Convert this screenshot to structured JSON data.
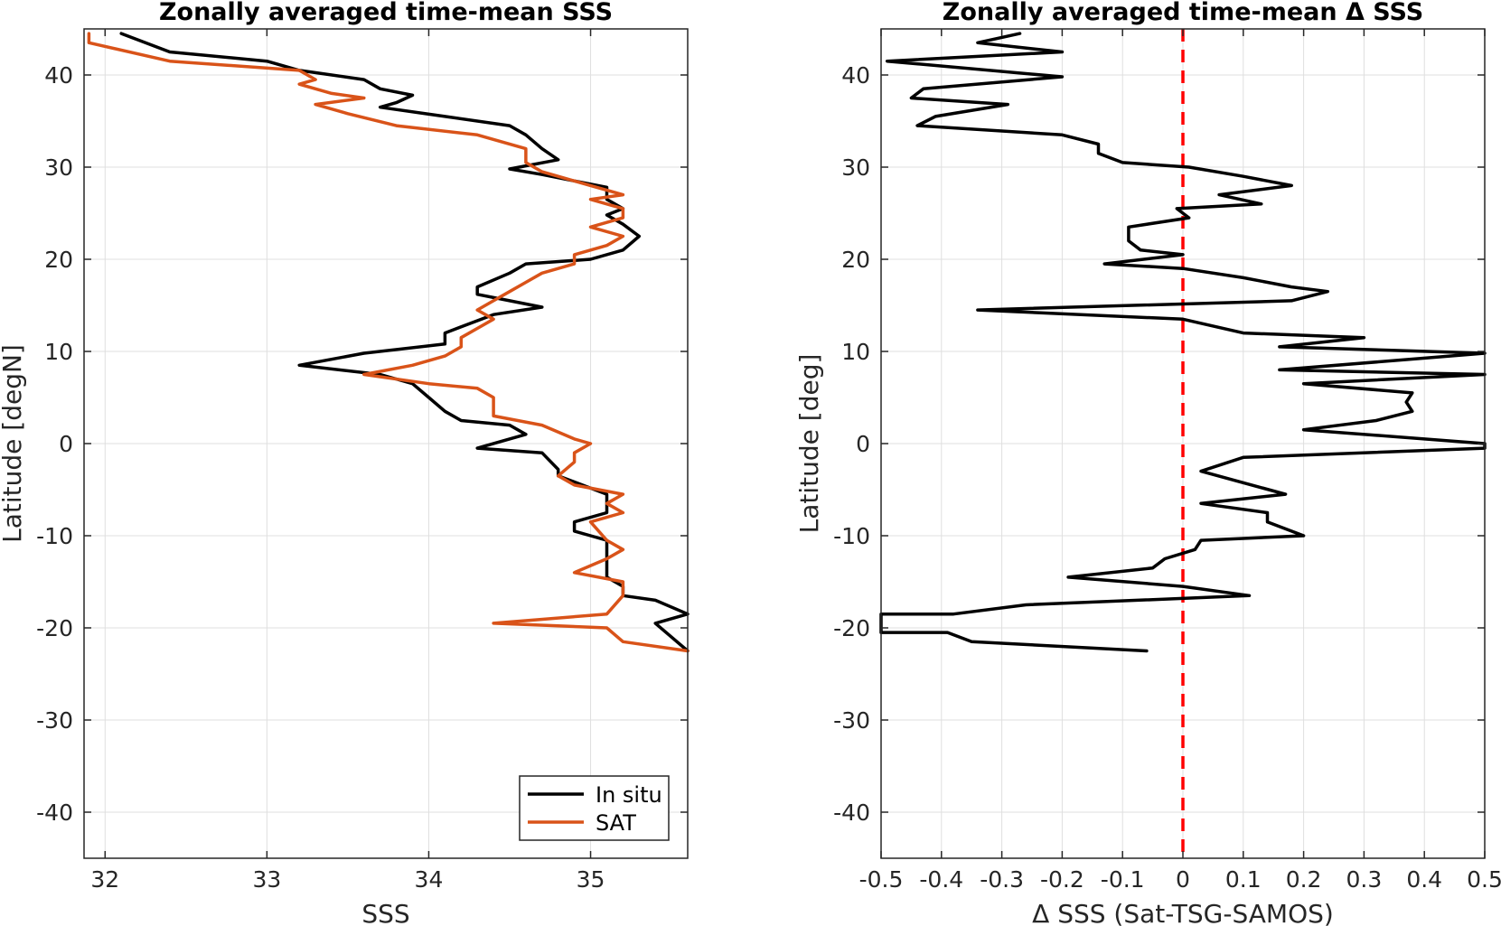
{
  "chart_data": [
    {
      "type": "line",
      "title": "Zonally averaged time-mean SSS",
      "xlabel": "SSS",
      "ylabel": "Latitude [degN]",
      "xlim": [
        31.87,
        35.6
      ],
      "ylim": [
        -45,
        45
      ],
      "xticks": [
        32,
        33,
        34,
        35
      ],
      "yticks": [
        -40,
        -30,
        -20,
        -10,
        0,
        10,
        20,
        30,
        40
      ],
      "grid": true,
      "legend": "bottom-right",
      "series": [
        {
          "name": "In situ",
          "color": "#000000",
          "points": [
            [
              32.1,
              44.5
            ],
            [
              32.4,
              42.5
            ],
            [
              33.0,
              41.5
            ],
            [
              33.2,
              40.5
            ],
            [
              33.6,
              39.5
            ],
            [
              33.7,
              38.5
            ],
            [
              33.9,
              37.8
            ],
            [
              33.8,
              37.0
            ],
            [
              33.7,
              36.5
            ],
            [
              34.1,
              35.5
            ],
            [
              34.5,
              34.5
            ],
            [
              34.6,
              33.5
            ],
            [
              34.7,
              32.0
            ],
            [
              34.8,
              30.8
            ],
            [
              34.5,
              29.8
            ],
            [
              34.7,
              29.2
            ],
            [
              35.1,
              27.8
            ],
            [
              35.1,
              26.5
            ],
            [
              35.2,
              25.5
            ],
            [
              35.1,
              24.8
            ],
            [
              35.2,
              23.8
            ],
            [
              35.3,
              22.5
            ],
            [
              35.2,
              21.0
            ],
            [
              35.0,
              20.0
            ],
            [
              34.6,
              19.5
            ],
            [
              34.5,
              18.5
            ],
            [
              34.3,
              17.0
            ],
            [
              34.3,
              16.2
            ],
            [
              34.5,
              15.5
            ],
            [
              34.7,
              14.8
            ],
            [
              34.4,
              14.0
            ],
            [
              34.1,
              12.0
            ],
            [
              34.1,
              10.8
            ],
            [
              33.6,
              9.8
            ],
            [
              33.2,
              8.5
            ],
            [
              33.7,
              7.5
            ],
            [
              33.9,
              6.5
            ],
            [
              34.0,
              5.0
            ],
            [
              34.1,
              3.5
            ],
            [
              34.2,
              2.5
            ],
            [
              34.5,
              2.0
            ],
            [
              34.6,
              1.0
            ],
            [
              34.3,
              -0.5
            ],
            [
              34.7,
              -1.0
            ],
            [
              34.8,
              -2.8
            ],
            [
              34.8,
              -3.5
            ],
            [
              35.1,
              -5.5
            ],
            [
              35.1,
              -6.5
            ],
            [
              35.1,
              -7.5
            ],
            [
              34.9,
              -8.5
            ],
            [
              34.9,
              -9.5
            ],
            [
              35.0,
              -10.0
            ],
            [
              35.1,
              -10.5
            ],
            [
              35.1,
              -13.5
            ],
            [
              35.1,
              -14.5
            ],
            [
              35.2,
              -15.5
            ],
            [
              35.2,
              -16.5
            ],
            [
              35.4,
              -17.0
            ],
            [
              35.6,
              -18.5
            ],
            [
              35.4,
              -19.5
            ],
            [
              35.5,
              -21.0
            ],
            [
              35.6,
              -22.5
            ]
          ]
        },
        {
          "name": "SAT",
          "color": "#d95319",
          "points": [
            [
              31.9,
              44.5
            ],
            [
              31.9,
              43.5
            ],
            [
              32.4,
              41.5
            ],
            [
              33.2,
              40.5
            ],
            [
              33.3,
              39.5
            ],
            [
              33.2,
              39.0
            ],
            [
              33.4,
              38.0
            ],
            [
              33.6,
              37.5
            ],
            [
              33.3,
              36.8
            ],
            [
              33.5,
              35.8
            ],
            [
              33.8,
              34.5
            ],
            [
              34.3,
              33.5
            ],
            [
              34.6,
              32.0
            ],
            [
              34.6,
              30.5
            ],
            [
              34.7,
              29.5
            ],
            [
              35.0,
              28.0
            ],
            [
              35.2,
              27.0
            ],
            [
              35.0,
              26.5
            ],
            [
              35.2,
              25.5
            ],
            [
              35.2,
              24.5
            ],
            [
              35.0,
              23.5
            ],
            [
              35.2,
              22.5
            ],
            [
              35.1,
              21.5
            ],
            [
              34.9,
              20.5
            ],
            [
              34.9,
              19.5
            ],
            [
              34.7,
              18.5
            ],
            [
              34.6,
              17.5
            ],
            [
              34.5,
              16.5
            ],
            [
              34.4,
              15.5
            ],
            [
              34.3,
              14.5
            ],
            [
              34.4,
              13.5
            ],
            [
              34.3,
              12.5
            ],
            [
              34.2,
              11.5
            ],
            [
              34.2,
              10.5
            ],
            [
              34.1,
              9.5
            ],
            [
              33.9,
              8.5
            ],
            [
              33.6,
              7.5
            ],
            [
              34.0,
              6.5
            ],
            [
              34.3,
              6.0
            ],
            [
              34.4,
              5.0
            ],
            [
              34.4,
              4.0
            ],
            [
              34.4,
              3.0
            ],
            [
              34.7,
              2.0
            ],
            [
              34.9,
              0.5
            ],
            [
              35.0,
              0.0
            ],
            [
              34.9,
              -1.0
            ],
            [
              34.9,
              -2.0
            ],
            [
              34.8,
              -3.5
            ],
            [
              34.9,
              -4.5
            ],
            [
              35.2,
              -5.5
            ],
            [
              35.1,
              -6.5
            ],
            [
              35.2,
              -7.5
            ],
            [
              35.0,
              -8.5
            ],
            [
              35.1,
              -10.5
            ],
            [
              35.2,
              -11.5
            ],
            [
              35.1,
              -12.5
            ],
            [
              34.9,
              -14.0
            ],
            [
              35.2,
              -15.0
            ],
            [
              35.2,
              -16.5
            ],
            [
              35.1,
              -18.5
            ],
            [
              34.4,
              -19.5
            ],
            [
              35.1,
              -20.0
            ],
            [
              35.2,
              -21.5
            ],
            [
              35.6,
              -22.5
            ]
          ]
        }
      ]
    },
    {
      "type": "line",
      "title": "Zonally averaged time-mean Δ SSS",
      "xlabel": "Δ SSS (Sat-TSG-SAMOS)",
      "ylabel": "Latitude [deg]",
      "xlim": [
        -0.5,
        0.5
      ],
      "ylim": [
        -45,
        45
      ],
      "xticks": [
        -0.5,
        -0.4,
        -0.3,
        -0.2,
        -0.1,
        0,
        0.1,
        0.2,
        0.3,
        0.4,
        0.5
      ],
      "yticks": [
        -40,
        -30,
        -20,
        -10,
        0,
        10,
        20,
        30,
        40
      ],
      "grid": true,
      "zero_line_color": "#ff0000",
      "series": [
        {
          "color": "#000000",
          "points": [
            [
              -0.27,
              44.5
            ],
            [
              -0.34,
              43.5
            ],
            [
              -0.2,
              42.5
            ],
            [
              -0.49,
              41.5
            ],
            [
              -0.2,
              39.8
            ],
            [
              -0.43,
              38.5
            ],
            [
              -0.45,
              37.5
            ],
            [
              -0.29,
              36.8
            ],
            [
              -0.41,
              35.5
            ],
            [
              -0.44,
              34.5
            ],
            [
              -0.2,
              33.5
            ],
            [
              -0.14,
              32.5
            ],
            [
              -0.14,
              31.5
            ],
            [
              -0.1,
              30.5
            ],
            [
              0.01,
              30.0
            ],
            [
              0.1,
              29.0
            ],
            [
              0.18,
              28.0
            ],
            [
              0.06,
              27.0
            ],
            [
              0.13,
              26.0
            ],
            [
              -0.01,
              25.5
            ],
            [
              0.01,
              24.5
            ],
            [
              -0.09,
              23.5
            ],
            [
              -0.09,
              22.0
            ],
            [
              -0.07,
              21.0
            ],
            [
              0.0,
              20.5
            ],
            [
              -0.13,
              19.5
            ],
            [
              0.0,
              19.0
            ],
            [
              0.1,
              18.0
            ],
            [
              0.18,
              17.0
            ],
            [
              0.24,
              16.5
            ],
            [
              0.18,
              15.5
            ],
            [
              -0.34,
              14.5
            ],
            [
              0.0,
              13.5
            ],
            [
              0.1,
              12.0
            ],
            [
              0.3,
              11.5
            ],
            [
              0.16,
              10.5
            ],
            [
              0.5,
              9.8
            ],
            [
              0.16,
              8.0
            ],
            [
              0.5,
              7.5
            ],
            [
              0.2,
              6.5
            ],
            [
              0.38,
              5.5
            ],
            [
              0.37,
              4.5
            ],
            [
              0.38,
              3.5
            ],
            [
              0.32,
              2.5
            ],
            [
              0.2,
              1.5
            ],
            [
              0.5,
              0.0
            ],
            [
              0.5,
              -0.5
            ],
            [
              0.1,
              -1.5
            ],
            [
              0.03,
              -3.0
            ],
            [
              0.17,
              -5.5
            ],
            [
              0.03,
              -6.5
            ],
            [
              0.14,
              -7.5
            ],
            [
              0.14,
              -8.5
            ],
            [
              0.2,
              -10.0
            ],
            [
              0.03,
              -10.5
            ],
            [
              0.02,
              -11.5
            ],
            [
              -0.03,
              -12.5
            ],
            [
              -0.05,
              -13.5
            ],
            [
              -0.19,
              -14.5
            ],
            [
              0.0,
              -15.5
            ],
            [
              0.11,
              -16.5
            ],
            [
              -0.26,
              -17.5
            ],
            [
              -0.38,
              -18.5
            ],
            [
              -0.5,
              -18.5
            ],
            [
              -0.5,
              -20.5
            ],
            [
              -0.39,
              -20.5
            ],
            [
              -0.35,
              -21.5
            ],
            [
              -0.06,
              -22.5
            ]
          ]
        }
      ]
    }
  ]
}
